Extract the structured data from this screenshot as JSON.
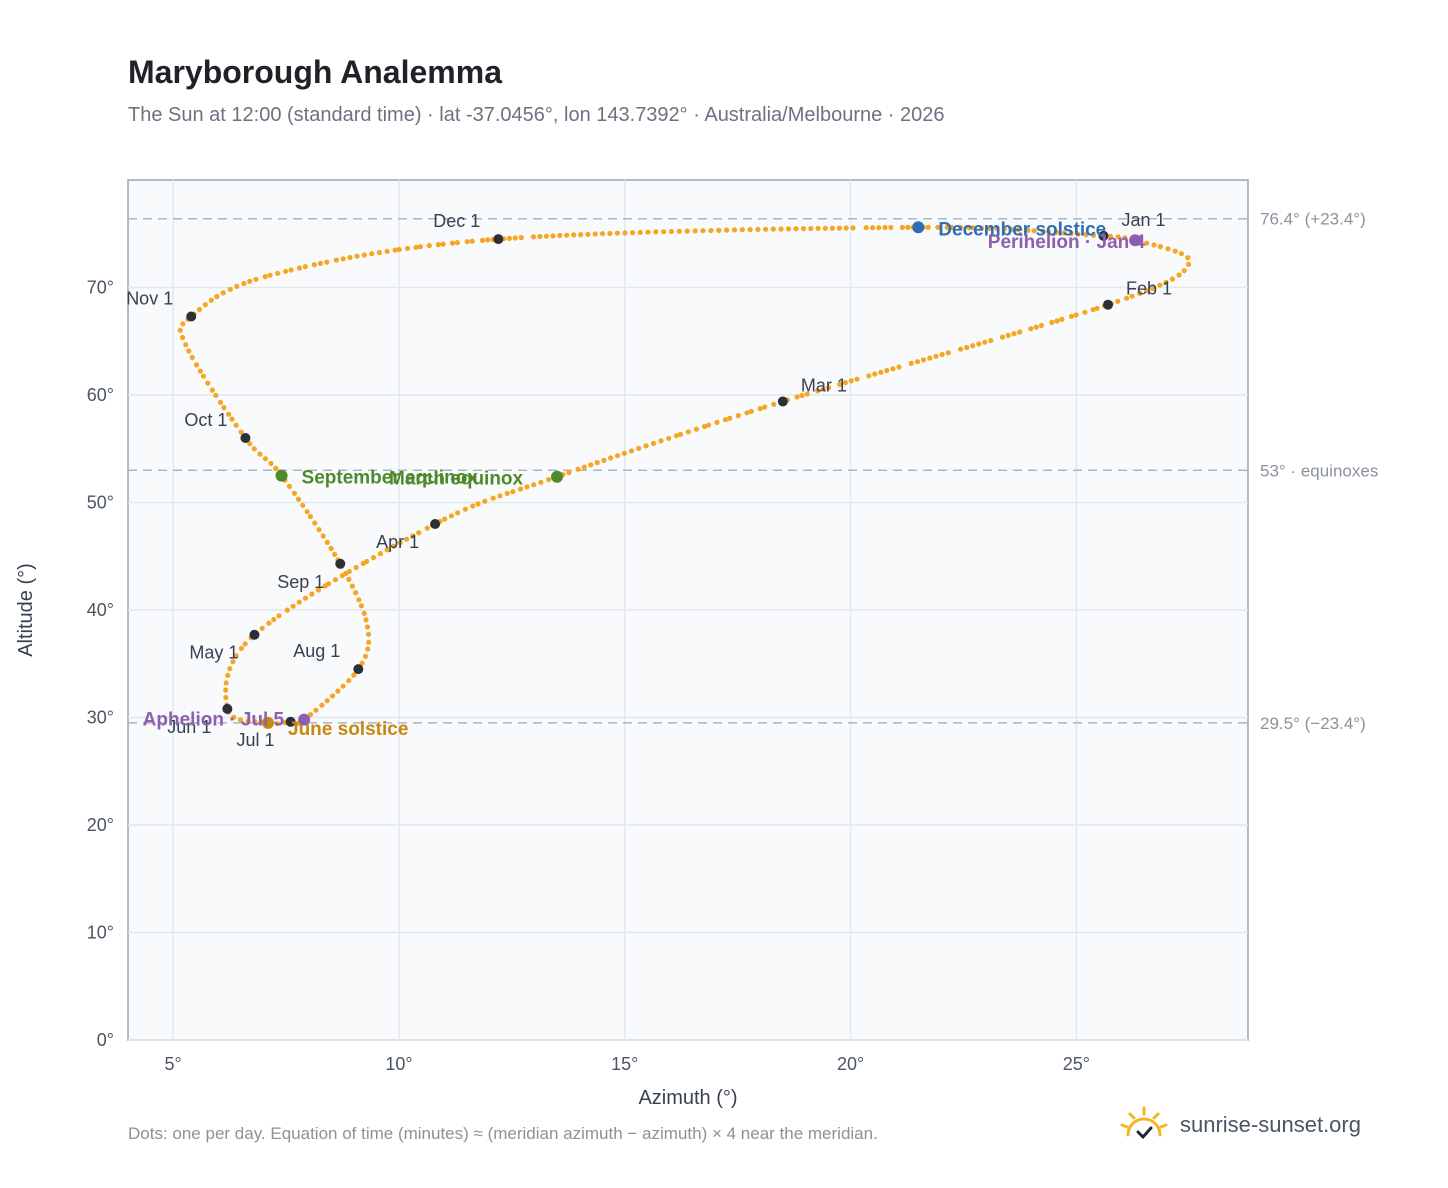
{
  "chart_data": {
    "type": "scatter",
    "title": "Maryborough Analemma",
    "subtitle": "The Sun at 12:00 (standard time) · lat -37.0456°, lon 143.7392° · Australia/Melbourne · 2026",
    "xlabel": "Azimuth (°)",
    "ylabel": "Altitude (°)",
    "xlim": [
      4,
      28.8
    ],
    "ylim": [
      0,
      80
    ],
    "xticks": [
      5,
      10,
      15,
      20,
      25
    ],
    "xtick_labels": [
      "5°",
      "10°",
      "15°",
      "20°",
      "25°"
    ],
    "yticks": [
      0,
      10,
      20,
      30,
      40,
      50,
      60,
      70
    ],
    "ytick_labels": [
      "0°",
      "10°",
      "20°",
      "30°",
      "40°",
      "50°",
      "60°",
      "70°"
    ],
    "grid": true,
    "series_color": "#f5a623",
    "daily_points_description": "one dot per day",
    "path_knots": [
      {
        "date": "Jan 1",
        "az": 25.6,
        "alt": 74.8
      },
      {
        "date": "Jan 4",
        "az": 26.3,
        "alt": 74.4
      },
      {
        "date": "Jan 16",
        "az": 27.5,
        "alt": 72.3
      },
      {
        "date": "Feb 1",
        "az": 25.7,
        "alt": 68.4
      },
      {
        "date": "Mar 1",
        "az": 18.5,
        "alt": 59.4
      },
      {
        "date": "Mar 20",
        "az": 13.5,
        "alt": 52.4
      },
      {
        "date": "Apr 1",
        "az": 10.8,
        "alt": 48.0
      },
      {
        "date": "May 1",
        "az": 6.8,
        "alt": 37.7
      },
      {
        "date": "Jun 1",
        "az": 6.2,
        "alt": 30.8
      },
      {
        "date": "Jun 21",
        "az": 7.1,
        "alt": 29.5
      },
      {
        "date": "Jul 1",
        "az": 7.6,
        "alt": 29.6
      },
      {
        "date": "Jul 5",
        "az": 7.9,
        "alt": 29.8
      },
      {
        "date": "Aug 1",
        "az": 9.1,
        "alt": 34.5
      },
      {
        "date": "Aug 16",
        "az": 9.3,
        "alt": 38.5
      },
      {
        "date": "Sep 1",
        "az": 8.7,
        "alt": 44.3
      },
      {
        "date": "Sep 22",
        "az": 7.4,
        "alt": 52.5
      },
      {
        "date": "Oct 1",
        "az": 6.6,
        "alt": 56.0
      },
      {
        "date": "Oct 20",
        "az": 5.3,
        "alt": 64.5
      },
      {
        "date": "Nov 1",
        "az": 5.4,
        "alt": 67.3
      },
      {
        "date": "Nov 15",
        "az": 7.2,
        "alt": 71.2
      },
      {
        "date": "Dec 1",
        "az": 12.2,
        "alt": 74.5
      },
      {
        "date": "Dec 21",
        "az": 21.5,
        "alt": 75.6
      },
      {
        "date": "Jan 1",
        "az": 25.6,
        "alt": 74.8
      }
    ],
    "month_markers": [
      {
        "label": "Jan 1",
        "az": 25.6,
        "alt": 74.8,
        "anchor": "right-above"
      },
      {
        "label": "Feb 1",
        "az": 25.7,
        "alt": 68.4,
        "anchor": "right-above"
      },
      {
        "label": "Mar 1",
        "az": 18.5,
        "alt": 59.4,
        "anchor": "right-above"
      },
      {
        "label": "Apr 1",
        "az": 10.8,
        "alt": 48.0,
        "anchor": "left-below"
      },
      {
        "label": "May 1",
        "az": 6.8,
        "alt": 37.7,
        "anchor": "left-below"
      },
      {
        "label": "Jun 1",
        "az": 6.2,
        "alt": 30.8,
        "anchor": "left-below"
      },
      {
        "label": "Jul 1",
        "az": 7.6,
        "alt": 29.6,
        "anchor": "left-below"
      },
      {
        "label": "Aug 1",
        "az": 9.1,
        "alt": 34.5,
        "anchor": "left-above"
      },
      {
        "label": "Sep 1",
        "az": 8.7,
        "alt": 44.3,
        "anchor": "left-below"
      },
      {
        "label": "Oct 1",
        "az": 6.6,
        "alt": 56.0,
        "anchor": "left-above"
      },
      {
        "label": "Nov 1",
        "az": 5.4,
        "alt": 67.3,
        "anchor": "left-above"
      },
      {
        "label": "Dec 1",
        "az": 12.2,
        "alt": 74.5,
        "anchor": "left-above"
      }
    ],
    "events": [
      {
        "label": "December solstice",
        "az": 21.5,
        "alt": 75.6,
        "color": "#2f6db5"
      },
      {
        "label": "Perihelion · Jan 4",
        "az": 26.3,
        "alt": 74.4,
        "color": "#8e5fae"
      },
      {
        "label": "September equinox",
        "az": 7.4,
        "alt": 52.5,
        "color": "#4e8a2a"
      },
      {
        "label": "March equinox",
        "az": 13.5,
        "alt": 52.4,
        "color": "#4e8a2a"
      },
      {
        "label": "June solstice",
        "az": 7.1,
        "alt": 29.5,
        "color": "#c8870f"
      },
      {
        "label": "Aphelion · Jul 5",
        "az": 7.9,
        "alt": 29.8,
        "color": "#8e5fae"
      }
    ],
    "reference_lines": [
      {
        "alt": 76.4,
        "label": "76.4° (+23.4°)"
      },
      {
        "alt": 53,
        "label": "53° · equinoxes"
      },
      {
        "alt": 29.5,
        "label": "29.5° (−23.4°)"
      }
    ]
  },
  "footnote": "Dots: one per day. Equation of time (minutes) ≈ (meridian azimuth − azimuth) × 4 near the meridian.",
  "brand": {
    "name": "sunrise-sunset.org",
    "icon": "sun-logo-icon"
  }
}
